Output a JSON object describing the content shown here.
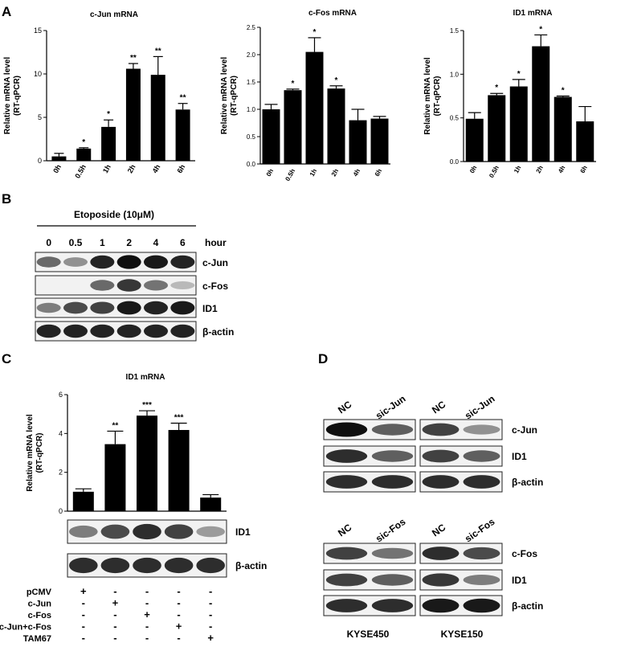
{
  "panels": {
    "A": "A",
    "B": "B",
    "C": "C",
    "D": "D"
  },
  "chart_data": [
    {
      "type": "bar",
      "title": "c-Jun mRNA",
      "ylabel": "Relative mRNA level\n(RT-qPCR)",
      "categories": [
        "0h",
        "0.5h",
        "1h",
        "2h",
        "4h",
        "6h"
      ],
      "values": [
        0.5,
        1.4,
        3.9,
        10.6,
        9.9,
        5.9
      ],
      "errors": [
        0.35,
        0.1,
        0.8,
        0.6,
        2.1,
        0.7
      ],
      "significance": [
        "",
        "*",
        "*",
        "**",
        "**",
        "**"
      ],
      "ylim": [
        0,
        15
      ],
      "yticks": [
        "0",
        "5",
        "10",
        "15"
      ]
    },
    {
      "type": "bar",
      "title": "c-Fos mRNA",
      "ylabel": "Relative mRNA level\n(RT-qPCR)",
      "categories": [
        "0h",
        "0.5h",
        "1h",
        "2h",
        "4h",
        "6h"
      ],
      "values": [
        1.0,
        1.35,
        2.05,
        1.38,
        0.8,
        0.83
      ],
      "errors": [
        0.09,
        0.02,
        0.26,
        0.05,
        0.2,
        0.04
      ],
      "significance": [
        "",
        "*",
        "*",
        "*",
        "",
        ""
      ],
      "ylim": [
        0,
        2.5
      ],
      "yticks": [
        "0.0",
        "0.5",
        "1.0",
        "1.5",
        "2.0",
        "2.5"
      ]
    },
    {
      "type": "bar",
      "title": "ID1 mRNA",
      "ylabel": "Relative mRNA level\n(RT-qPCR)",
      "categories": [
        "0h",
        "0.5h",
        "1h",
        "2h",
        "4h",
        "6h"
      ],
      "values": [
        0.49,
        0.76,
        0.86,
        1.32,
        0.74,
        0.46
      ],
      "errors": [
        0.07,
        0.02,
        0.08,
        0.13,
        0.01,
        0.17
      ],
      "significance": [
        "",
        "*",
        "*",
        "*",
        "*",
        ""
      ],
      "ylim": [
        0,
        1.5
      ],
      "yticks": [
        "0.0",
        "0.5",
        "1.0",
        "1.5"
      ]
    },
    {
      "type": "bar",
      "title": "ID1 mRNA",
      "ylabel": "Relative mRNA level\n(RT-qPCR)",
      "categories": [
        "pCMV",
        "c-Jun",
        "c-Fos",
        "c-Jun+c-Fos",
        "TAM67"
      ],
      "values": [
        1.0,
        3.45,
        4.92,
        4.18,
        0.7
      ],
      "errors": [
        0.15,
        0.67,
        0.25,
        0.35,
        0.15
      ],
      "significance": [
        "",
        "**",
        "***",
        "***",
        ""
      ],
      "ylim": [
        0,
        6
      ],
      "yticks": [
        "0",
        "2",
        "4",
        "6"
      ]
    }
  ],
  "blotB": {
    "treatment": "Etoposide (10μM)",
    "hour_label": "hour",
    "hours": [
      "0",
      "0.5",
      "1",
      "2",
      "4",
      "6"
    ],
    "rows": [
      {
        "label": "c-Jun",
        "intensity": [
          0.55,
          0.35,
          0.9,
          1.0,
          0.95,
          0.9
        ]
      },
      {
        "label": "c-Fos",
        "intensity": [
          0.0,
          0.0,
          0.55,
          0.8,
          0.5,
          0.15
        ]
      },
      {
        "label": "ID1",
        "intensity": [
          0.45,
          0.7,
          0.75,
          0.95,
          0.9,
          0.95
        ]
      },
      {
        "label": "β-actin",
        "intensity": [
          0.9,
          0.9,
          0.9,
          0.9,
          0.9,
          0.9
        ]
      }
    ]
  },
  "blotC": {
    "rows": [
      {
        "label": "ID1",
        "intensity": [
          0.45,
          0.7,
          0.85,
          0.75,
          0.3
        ]
      },
      {
        "label": "β-actin",
        "intensity": [
          0.85,
          0.85,
          0.85,
          0.85,
          0.85
        ]
      }
    ],
    "conditions": [
      "pCMV",
      "c-Jun",
      "c-Fos",
      "c-Jun+c-Fos",
      "TAM67"
    ],
    "signs": [
      [
        "+",
        "-",
        "-",
        "-",
        "-"
      ],
      [
        "-",
        "+",
        "-",
        "-",
        "-"
      ],
      [
        "-",
        "-",
        "+",
        "-",
        "-"
      ],
      [
        "-",
        "-",
        "-",
        "+",
        "-"
      ],
      [
        "-",
        "-",
        "-",
        "-",
        "+"
      ]
    ]
  },
  "blotD": {
    "top_lanes": [
      "NC",
      "sic-Jun",
      "NC",
      "sic-Jun"
    ],
    "top_rows": [
      {
        "label": "c-Jun",
        "intensity": [
          1.0,
          0.6,
          0.75,
          0.35
        ]
      },
      {
        "label": "ID1",
        "intensity": [
          0.85,
          0.6,
          0.75,
          0.6
        ]
      },
      {
        "label": "β-actin",
        "intensity": [
          0.85,
          0.85,
          0.85,
          0.85
        ]
      }
    ],
    "bottom_lanes": [
      "NC",
      "sic-Fos",
      "NC",
      "sic-Fos"
    ],
    "bottom_rows": [
      {
        "label": "c-Fos",
        "intensity": [
          0.75,
          0.5,
          0.85,
          0.7
        ]
      },
      {
        "label": "ID1",
        "intensity": [
          0.75,
          0.6,
          0.8,
          0.45
        ]
      },
      {
        "label": "β-actin",
        "intensity": [
          0.85,
          0.85,
          0.95,
          0.95
        ]
      }
    ],
    "cell_lines": [
      "KYSE450",
      "KYSE150"
    ]
  }
}
